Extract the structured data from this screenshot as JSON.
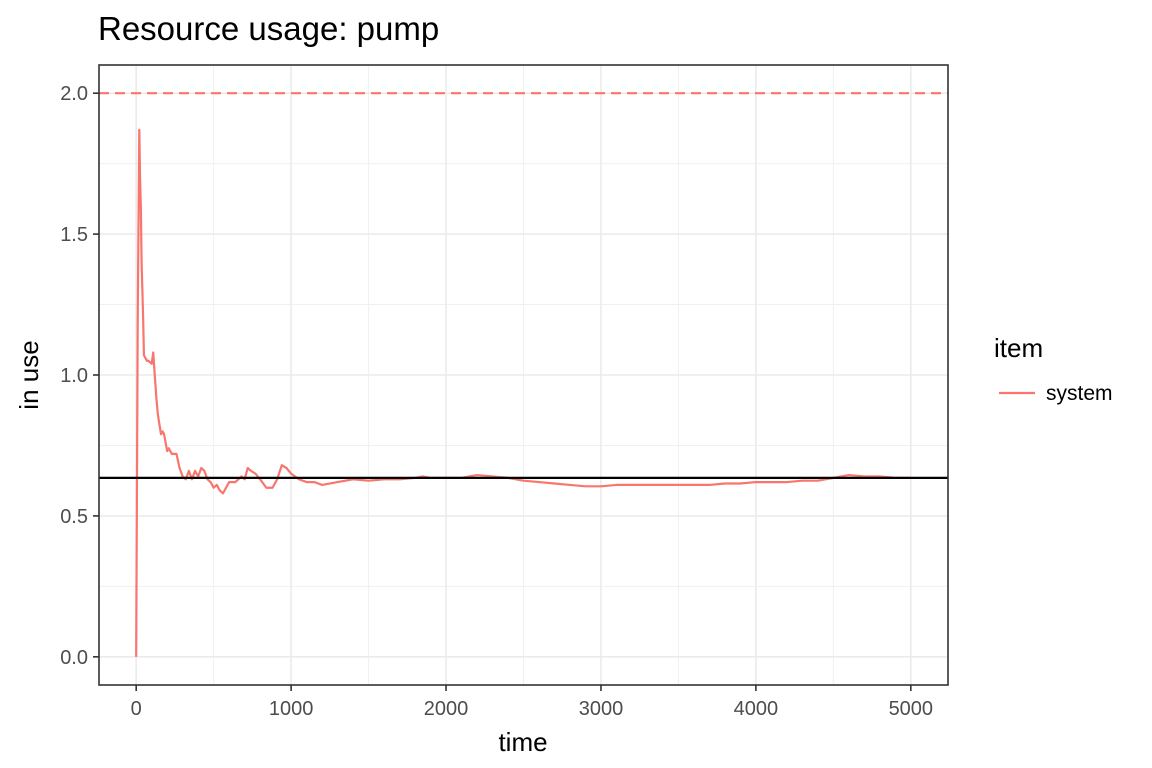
{
  "chart_data": {
    "type": "line",
    "title": "Resource usage: pump",
    "xlabel": "time",
    "ylabel": "in use",
    "xlim": [
      -240,
      5240
    ],
    "ylim": [
      -0.1,
      2.1
    ],
    "x_ticks": [
      0,
      1000,
      2000,
      3000,
      4000,
      5000
    ],
    "y_ticks": [
      0.0,
      0.5,
      1.0,
      1.5,
      2.0
    ],
    "x_tick_labels": [
      "0",
      "1000",
      "2000",
      "3000",
      "4000",
      "5000"
    ],
    "y_tick_labels": [
      "0.0",
      "0.5",
      "1.0",
      "1.5",
      "2.0"
    ],
    "grid": true,
    "legend": {
      "title": "item",
      "position": "right"
    },
    "reference_lines": [
      {
        "type": "hline",
        "y": 2.0,
        "style": "dashed",
        "color": "#F8766D"
      },
      {
        "type": "hline",
        "y": 0.635,
        "style": "solid",
        "color": "#000000"
      }
    ],
    "series": [
      {
        "name": "system",
        "color": "#F8766D",
        "x": [
          0,
          10,
          20,
          25,
          30,
          35,
          40,
          45,
          50,
          60,
          70,
          80,
          100,
          110,
          120,
          130,
          140,
          160,
          170,
          180,
          200,
          210,
          230,
          260,
          280,
          300,
          320,
          340,
          360,
          380,
          400,
          420,
          440,
          460,
          480,
          500,
          520,
          540,
          560,
          580,
          600,
          640,
          680,
          700,
          720,
          740,
          770,
          800,
          840,
          880,
          910,
          940,
          970,
          1000,
          1050,
          1100,
          1150,
          1200,
          1300,
          1400,
          1500,
          1600,
          1700,
          1800,
          1850,
          1900,
          2000,
          2100,
          2200,
          2300,
          2400,
          2500,
          2600,
          2700,
          2800,
          2900,
          3000,
          3100,
          3200,
          3300,
          3400,
          3500,
          3600,
          3700,
          3800,
          3900,
          4000,
          4100,
          4200,
          4300,
          4400,
          4500,
          4600,
          4700,
          4800,
          4900,
          5000
        ],
        "values": [
          0.0,
          1.2,
          1.87,
          1.7,
          1.6,
          1.4,
          1.3,
          1.2,
          1.07,
          1.06,
          1.05,
          1.05,
          1.04,
          1.08,
          1.0,
          0.92,
          0.86,
          0.79,
          0.8,
          0.79,
          0.73,
          0.74,
          0.72,
          0.72,
          0.67,
          0.64,
          0.63,
          0.66,
          0.63,
          0.66,
          0.64,
          0.67,
          0.66,
          0.63,
          0.62,
          0.6,
          0.61,
          0.59,
          0.58,
          0.6,
          0.62,
          0.62,
          0.64,
          0.63,
          0.67,
          0.66,
          0.65,
          0.63,
          0.6,
          0.6,
          0.63,
          0.68,
          0.67,
          0.65,
          0.63,
          0.62,
          0.62,
          0.61,
          0.62,
          0.63,
          0.625,
          0.63,
          0.63,
          0.635,
          0.64,
          0.635,
          0.635,
          0.635,
          0.645,
          0.64,
          0.635,
          0.625,
          0.62,
          0.615,
          0.61,
          0.605,
          0.605,
          0.61,
          0.61,
          0.61,
          0.61,
          0.61,
          0.61,
          0.61,
          0.615,
          0.615,
          0.62,
          0.62,
          0.62,
          0.625,
          0.625,
          0.635,
          0.645,
          0.64,
          0.64,
          0.635,
          0.635
        ]
      }
    ]
  }
}
